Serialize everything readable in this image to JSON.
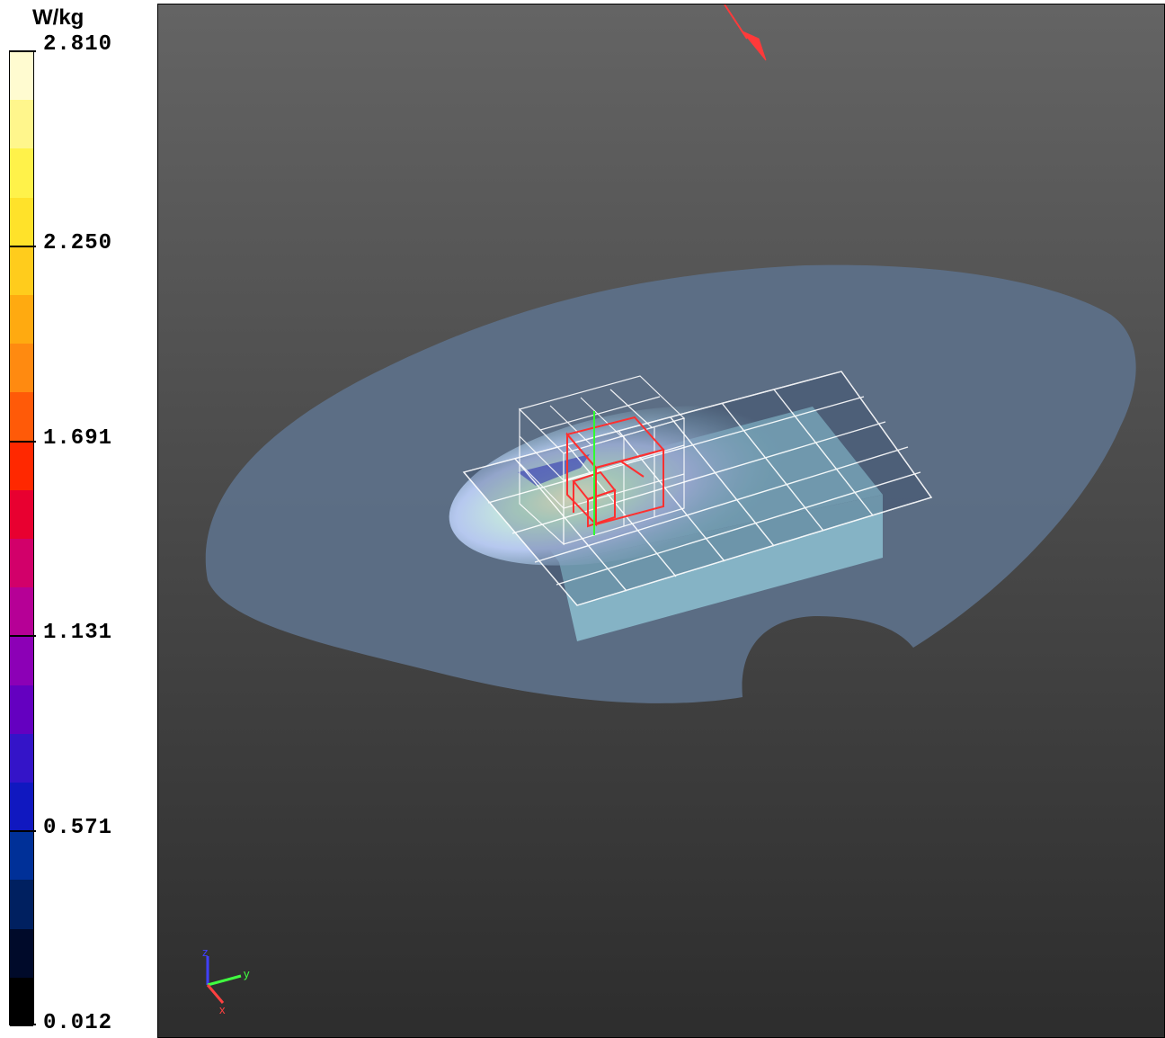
{
  "legend": {
    "unit": "W/kg",
    "ticks": [
      "2.810",
      "2.250",
      "1.691",
      "1.131",
      "0.571",
      "0.012"
    ],
    "bands": [
      "#fffbd0",
      "#fff68c",
      "#fff24a",
      "#ffe22a",
      "#ffcc1c",
      "#ffaa10",
      "#ff8a10",
      "#ff5a08",
      "#ff2800",
      "#e80030",
      "#d2006a",
      "#b60096",
      "#8c00b6",
      "#6400c0",
      "#3414c8",
      "#1018c0",
      "#003098",
      "#002060",
      "#000a2a",
      "#000000"
    ]
  },
  "viewport": {
    "axes_labels": {
      "z": "z",
      "y": "y",
      "x": "x"
    },
    "colors": {
      "background_top": "#636363",
      "background_bottom": "#2e2e2e",
      "phantom": "#5d7088",
      "slab": "#8dc0d0",
      "grid": "#ffffff",
      "zoom_cube": "#ff3030",
      "direction_arrow": "#ff3a3a"
    }
  }
}
